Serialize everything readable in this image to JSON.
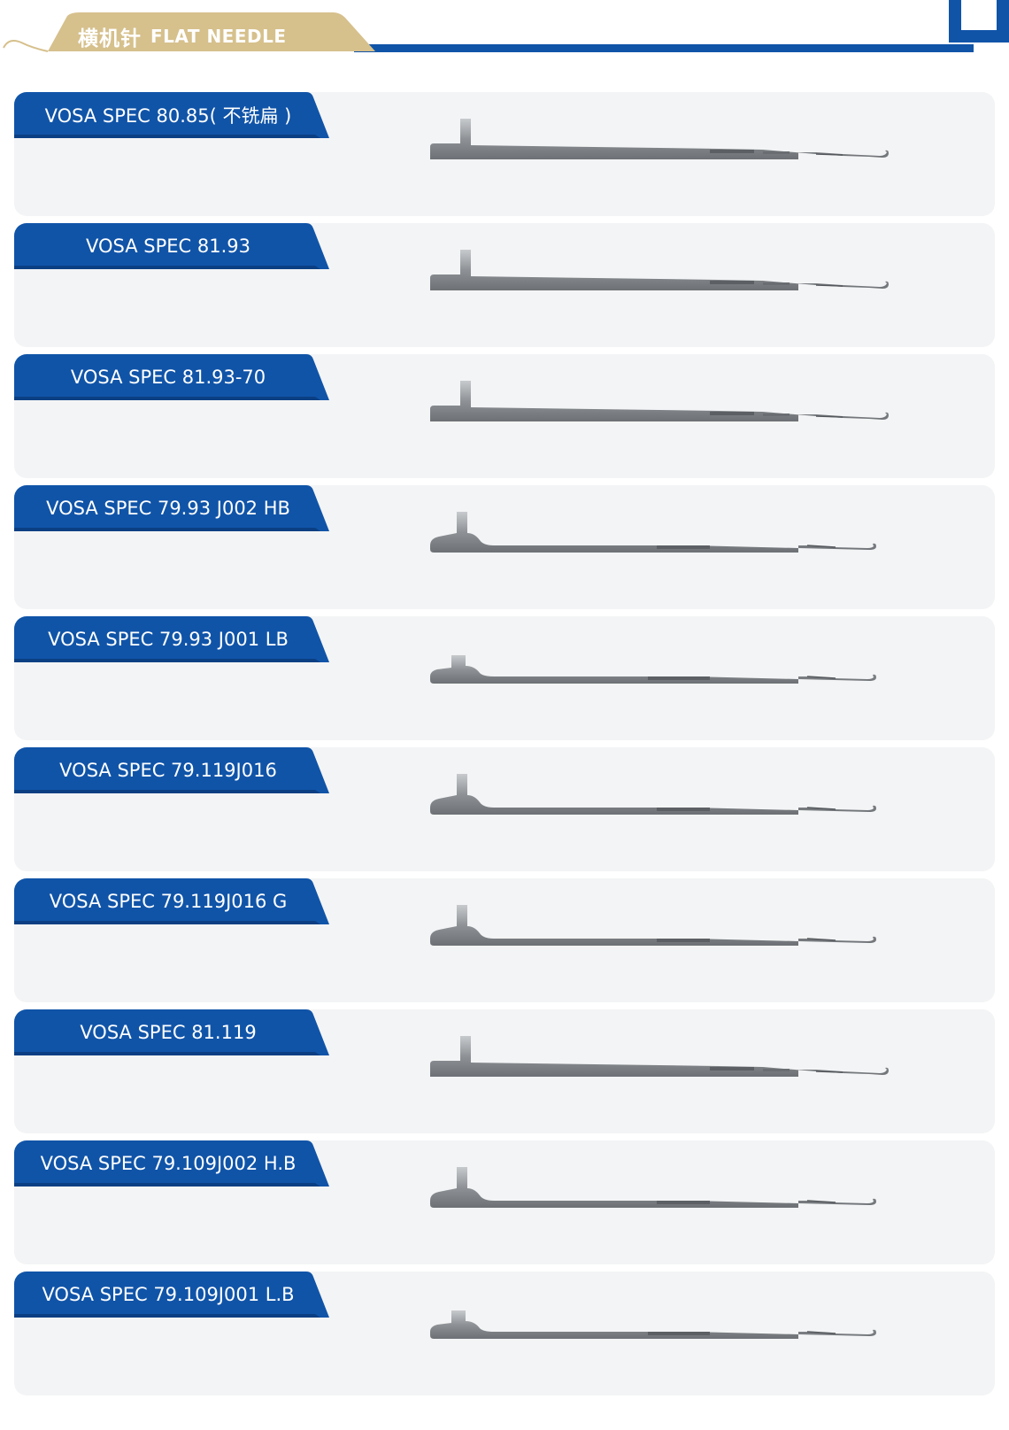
{
  "header": {
    "title_cn": "横机针",
    "title_en": "FLAT NEEDLE",
    "accent_blue": "#1054a8",
    "accent_gold": "#d6c08c"
  },
  "products": [
    {
      "label": "VOSA SPEC 80.85( 不铣扁 )",
      "icon": "straight-needle-icon"
    },
    {
      "label": "VOSA SPEC 81.93",
      "icon": "straight-needle-icon"
    },
    {
      "label": "VOSA SPEC 81.93-70",
      "icon": "straight-needle-icon"
    },
    {
      "label": "VOSA SPEC 79.93 J002 HB",
      "icon": "curved-needle-icon"
    },
    {
      "label": "VOSA SPEC 79.93 J001 LB",
      "icon": "curved-needle-icon"
    },
    {
      "label": "VOSA SPEC 79.119J016",
      "icon": "curved-needle-icon"
    },
    {
      "label": "VOSA SPEC 79.119J016 G",
      "icon": "curved-needle-icon"
    },
    {
      "label": "VOSA SPEC 81.119",
      "icon": "straight-needle-icon"
    },
    {
      "label": "VOSA SPEC 79.109J002 H.B",
      "icon": "curved-needle-icon"
    },
    {
      "label": "VOSA SPEC 79.109J001 L.B",
      "icon": "curved-needle-icon"
    }
  ]
}
